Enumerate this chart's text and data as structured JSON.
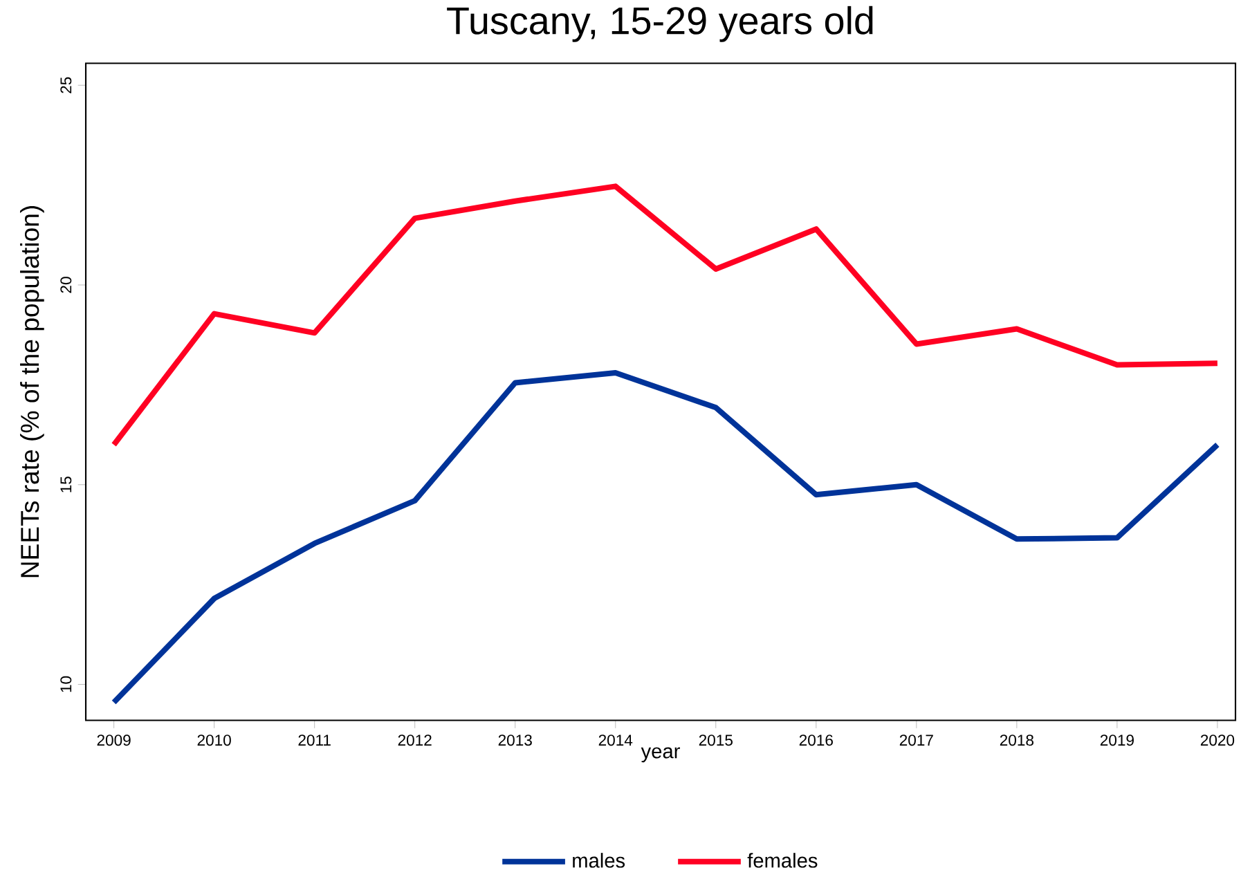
{
  "chart_data": {
    "type": "line",
    "title": "Tuscany, 15-29 years old",
    "xlabel": "year",
    "ylabel": "NEETs rate (% of the population)",
    "x": [
      2009,
      2010,
      2011,
      2012,
      2013,
      2014,
      2015,
      2016,
      2017,
      2018,
      2019,
      2020
    ],
    "series": [
      {
        "name": "males",
        "color": "#003399",
        "values": [
          9.55,
          12.15,
          13.53,
          14.6,
          17.55,
          17.8,
          16.93,
          14.75,
          15.0,
          13.64,
          13.67,
          16.0
        ]
      },
      {
        "name": "females",
        "color": "#ff0022",
        "values": [
          16.0,
          19.28,
          18.8,
          21.67,
          22.1,
          22.47,
          20.4,
          21.4,
          18.52,
          18.9,
          18.0,
          18.04
        ]
      }
    ],
    "xlim": [
      2008.72,
      2020.18
    ],
    "ylim": [
      9.1,
      25.55
    ],
    "xticks": [
      2009,
      2010,
      2011,
      2012,
      2013,
      2014,
      2015,
      2016,
      2017,
      2018,
      2019,
      2020
    ],
    "yticks": [
      10,
      15,
      20,
      25
    ],
    "grid": false,
    "legend": "bottom",
    "marker": "none",
    "line_style": "solid"
  }
}
